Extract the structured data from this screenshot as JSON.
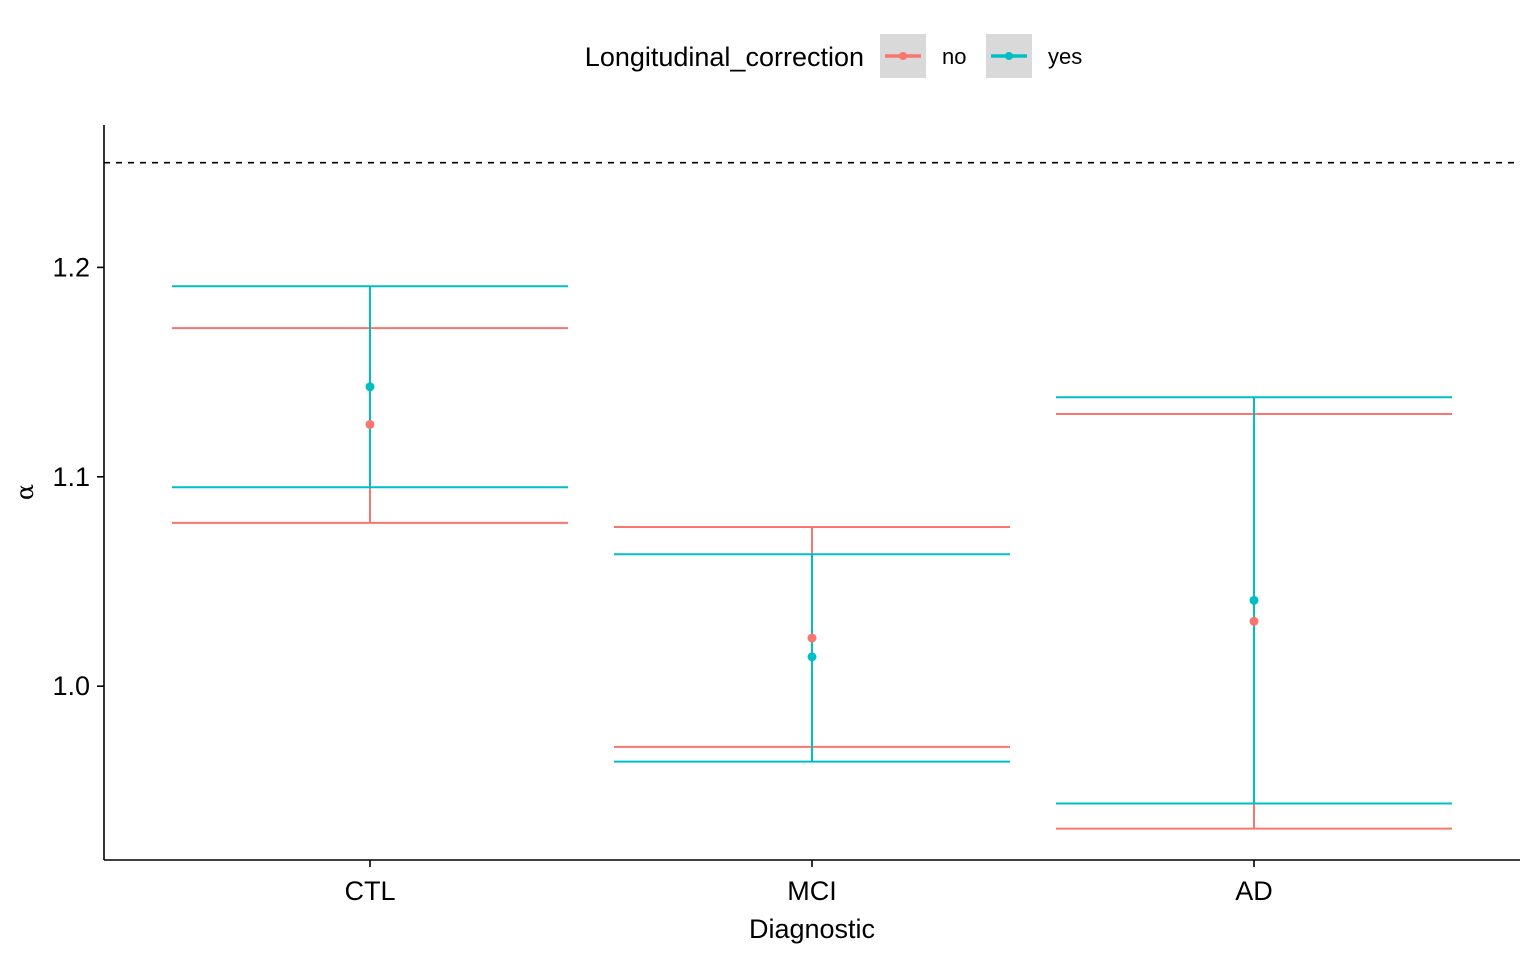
{
  "chart_data": {
    "type": "errorbar",
    "xlabel": "Diagnostic",
    "ylabel": "α",
    "categories": [
      "CTL",
      "MCI",
      "AD"
    ],
    "ylim": [
      0.917,
      1.268
    ],
    "yticks": [
      1.0,
      1.1,
      1.2
    ],
    "ytick_labels": [
      "1.0",
      "1.1",
      "1.2"
    ],
    "reference_line": {
      "y": 1.25,
      "style": "dashed",
      "color": "#000000"
    },
    "grid": false,
    "legend": {
      "title": "Longitudinal_correction",
      "position": "top",
      "entries": [
        "no",
        "yes"
      ]
    },
    "series": [
      {
        "name": "no",
        "color": "#F8766D",
        "points": [
          {
            "category": "CTL",
            "y": 1.125,
            "lower": 1.078,
            "upper": 1.171
          },
          {
            "category": "MCI",
            "y": 1.023,
            "lower": 0.971,
            "upper": 1.076
          },
          {
            "category": "AD",
            "y": 1.031,
            "lower": 0.932,
            "upper": 1.13
          }
        ]
      },
      {
        "name": "yes",
        "color": "#00BFC4",
        "points": [
          {
            "category": "CTL",
            "y": 1.143,
            "lower": 1.095,
            "upper": 1.191
          },
          {
            "category": "MCI",
            "y": 1.014,
            "lower": 0.964,
            "upper": 1.063
          },
          {
            "category": "AD",
            "y": 1.041,
            "lower": 0.944,
            "upper": 1.138
          }
        ]
      }
    ]
  }
}
